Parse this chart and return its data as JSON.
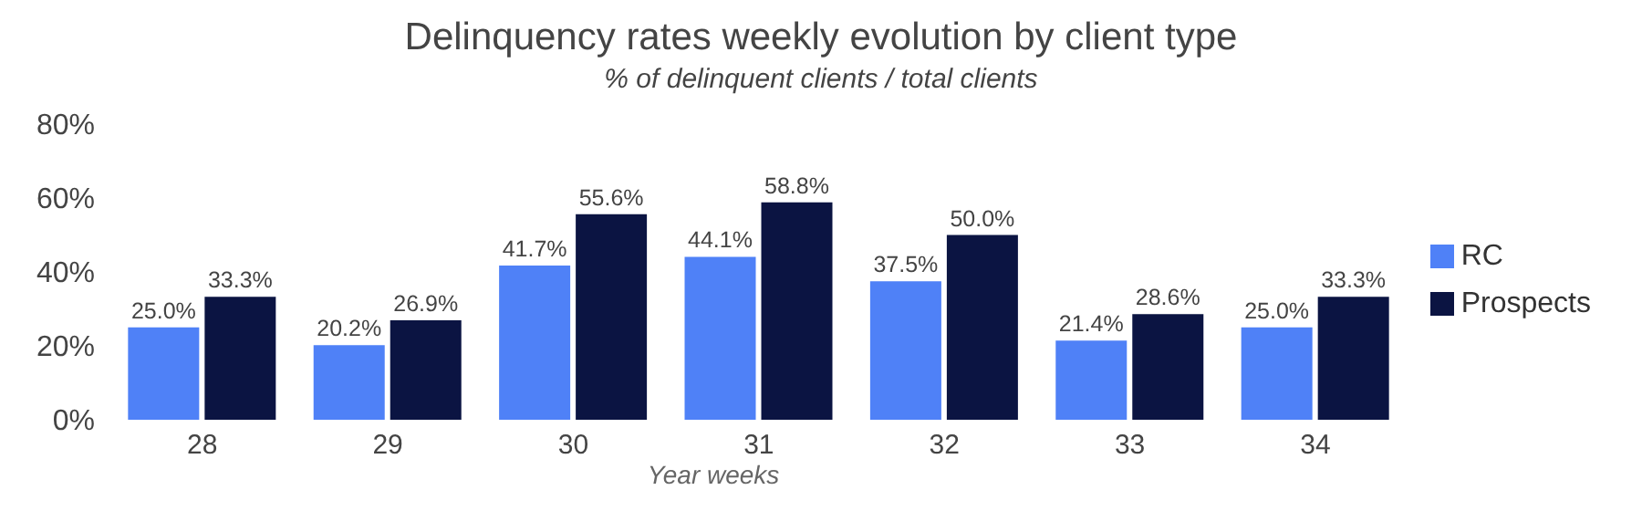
{
  "chart_data": {
    "type": "bar",
    "title": "Delinquency rates weekly evolution by client type",
    "subtitle": "% of delinquent clients / total clients",
    "xlabel": "Year weeks",
    "categories": [
      "28",
      "29",
      "30",
      "31",
      "32",
      "33",
      "34"
    ],
    "series": [
      {
        "name": "RC",
        "color": "#4f81f7",
        "values": [
          25.0,
          20.2,
          41.7,
          44.1,
          37.5,
          21.4,
          25.0
        ],
        "value_labels": [
          "25.0%",
          "20.2%",
          "41.7%",
          "44.1%",
          "37.5%",
          "21.4%",
          "25.0%"
        ]
      },
      {
        "name": "Prospects",
        "color": "#0b1442",
        "values": [
          33.3,
          26.9,
          55.6,
          58.8,
          50.0,
          28.6,
          33.3
        ],
        "value_labels": [
          "33.3%",
          "26.9%",
          "55.6%",
          "58.8%",
          "50.0%",
          "28.6%",
          "33.3%"
        ]
      }
    ],
    "ylim": [
      0,
      80
    ],
    "yticks": [
      {
        "value": 0,
        "label": "0%"
      },
      {
        "value": 20,
        "label": "20%"
      },
      {
        "value": 40,
        "label": "40%"
      },
      {
        "value": 60,
        "label": "60%"
      },
      {
        "value": 80,
        "label": "80%"
      }
    ],
    "grid": false,
    "legend": "right"
  }
}
